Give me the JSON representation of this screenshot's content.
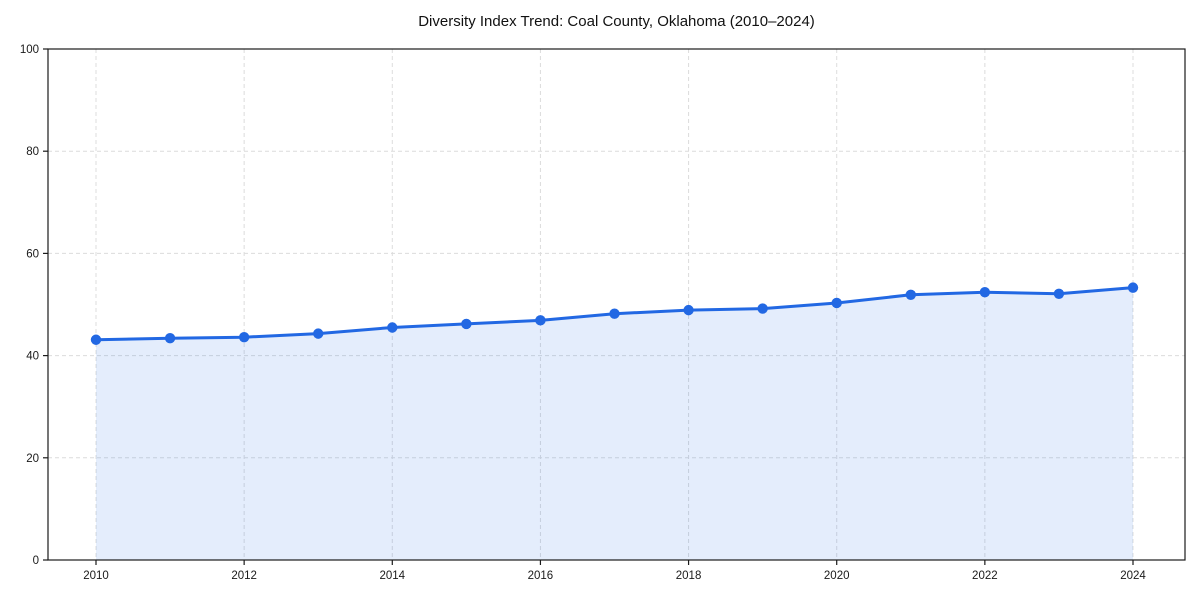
{
  "page": {
    "background": "#ffffff"
  },
  "chart_data": {
    "type": "area",
    "title": "Diversity Index Trend: Coal County, Oklahoma (2010–2024)",
    "x": [
      2010,
      2011,
      2012,
      2013,
      2014,
      2015,
      2016,
      2017,
      2018,
      2019,
      2020,
      2021,
      2022,
      2023,
      2024
    ],
    "series": [
      {
        "name": "Diversity Index",
        "values": [
          43.1,
          43.4,
          43.6,
          44.3,
          45.5,
          46.2,
          46.9,
          48.2,
          48.9,
          49.2,
          50.3,
          51.9,
          52.4,
          52.1,
          53.3
        ]
      }
    ],
    "xlabel": "",
    "ylabel": "",
    "xticks": [
      2010,
      2012,
      2014,
      2016,
      2018,
      2020,
      2022,
      2024
    ],
    "yticks": [
      0,
      20,
      40,
      60,
      80,
      100
    ],
    "ylim": [
      0,
      100
    ],
    "grid": true,
    "grid_style": "dashed",
    "legend": "none",
    "marker": "circle",
    "colors": {
      "line": "#2268E3",
      "marker": "#2268E3",
      "fill": "rgba(34,104,227,0.12)",
      "grid": "#dcdcdc",
      "spine": "#1a1a1a",
      "tick_label": "#1a1a1a",
      "title": "#111111",
      "background": "#ffffff"
    }
  }
}
